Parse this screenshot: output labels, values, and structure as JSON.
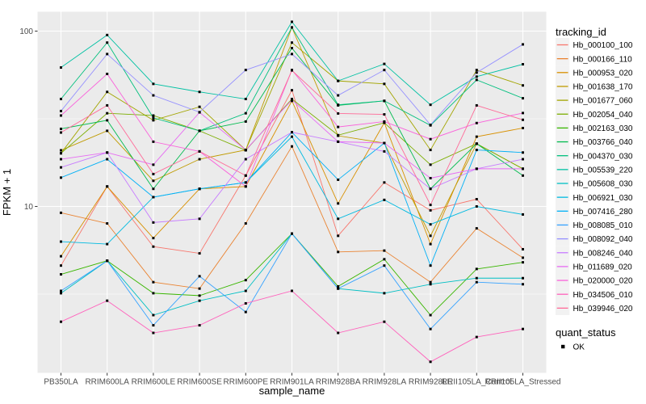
{
  "chart_data": {
    "type": "line",
    "title": "",
    "xlabel": "sample_name",
    "ylabel": "FPKM + 1",
    "y_scale": "log10",
    "y_ticks": [
      10,
      100
    ],
    "y_minor_gridlines": [
      3.162,
      31.62
    ],
    "ylim": [
      1.07,
      129
    ],
    "grid": true,
    "panel_bg": "#EBEBEB",
    "grid_color": "#FFFFFF",
    "marker": "black-square",
    "marker_color": "#000000",
    "tick_label_color": "#4D4D4D",
    "legend_position": "right",
    "categories": [
      "PB350LA",
      "RRIM600LA",
      "RRIM600LE",
      "RRIM600SE",
      "RRIM600PE",
      "RRIM901LA",
      "RRIM928BA",
      "RRIM928LA",
      "RRIM928LE",
      "RRII105LA_Control",
      "RRII105LA_Stressed"
    ],
    "series": [
      {
        "name": "Hb_000100_100",
        "color": "#F8766D",
        "values": [
          4.6,
          13,
          5.9,
          5.4,
          15,
          46,
          6.8,
          13.7,
          9.5,
          11,
          5.7
        ]
      },
      {
        "name": "Hb_000166_110",
        "color": "#EA8331",
        "values": [
          9.2,
          8,
          3.7,
          3.4,
          8,
          22,
          5.5,
          5.6,
          3.7,
          7.5,
          5.1
        ]
      },
      {
        "name": "Hb_000953_020",
        "color": "#D89000",
        "values": [
          5.2,
          13,
          6.6,
          12.6,
          13,
          40,
          10.4,
          30,
          6.1,
          25,
          28
        ]
      },
      {
        "name": "Hb_001638_170",
        "color": "#C09B00",
        "values": [
          20.9,
          27,
          14,
          18.6,
          21,
          105,
          25.3,
          23,
          6.8,
          22.8,
          16.4
        ]
      },
      {
        "name": "Hb_001677_060",
        "color": "#A3A500",
        "values": [
          20.1,
          45,
          31,
          37,
          21,
          86,
          52,
          50,
          21,
          60,
          49
        ]
      },
      {
        "name": "Hb_002054_040",
        "color": "#7CAE00",
        "values": [
          20.1,
          34,
          33,
          27,
          20.9,
          41,
          25.5,
          30,
          17.3,
          22.8,
          16.4
        ]
      },
      {
        "name": "Hb_002163_030",
        "color": "#39B600",
        "values": [
          4.1,
          4.9,
          3.2,
          3.1,
          3.8,
          7,
          3.5,
          5,
          2.4,
          4.4,
          4.8
        ]
      },
      {
        "name": "Hb_003766_040",
        "color": "#00BB4E",
        "values": [
          27.7,
          31,
          12.6,
          27,
          30.5,
          80,
          37.7,
          40,
          12.6,
          22.8,
          15
        ]
      },
      {
        "name": "Hb_004370_030",
        "color": "#00BF7D",
        "values": [
          41,
          86,
          32,
          27,
          34,
          105,
          38,
          40,
          29,
          52.7,
          41.4
        ]
      },
      {
        "name": "Hb_005539_220",
        "color": "#00C1A3",
        "values": [
          62,
          95,
          50,
          45,
          41,
          113,
          52,
          65,
          38,
          55,
          64.7
        ]
      },
      {
        "name": "Hb_005608_030",
        "color": "#00BFC4",
        "values": [
          3.2,
          4.9,
          2.4,
          2.9,
          3.3,
          7,
          3.4,
          3.2,
          3.6,
          3.9,
          3.9
        ]
      },
      {
        "name": "Hb_006921_030",
        "color": "#00BAE0",
        "values": [
          6.3,
          6.1,
          11.3,
          12.6,
          13.7,
          25,
          8.5,
          10.9,
          7.9,
          10,
          9
        ]
      },
      {
        "name": "Hb_007416_280",
        "color": "#00B0F6",
        "values": [
          14.6,
          18.6,
          11.3,
          12.6,
          13.7,
          26.5,
          14.2,
          23,
          4.6,
          21,
          20.3
        ]
      },
      {
        "name": "Hb_008085_010",
        "color": "#35A2FF",
        "values": [
          3.3,
          4.9,
          2.1,
          4,
          2.5,
          7,
          3.4,
          4.6,
          2,
          3.7,
          3.6
        ]
      },
      {
        "name": "Hb_008092_040",
        "color": "#9590FF",
        "values": [
          35,
          74,
          43,
          34.5,
          60,
          74,
          43,
          60,
          29.2,
          58,
          84
        ]
      },
      {
        "name": "Hb_008246_040",
        "color": "#C77CFF",
        "values": [
          16.7,
          20.3,
          8.1,
          8.5,
          18.6,
          26.5,
          23.4,
          20.6,
          12.6,
          16.4,
          18.6
        ]
      },
      {
        "name": "Hb_011689_020",
        "color": "#E76BF3",
        "values": [
          18.6,
          20.3,
          17.3,
          34.4,
          21,
          40.5,
          23.4,
          23,
          14.5,
          16.4,
          16.4
        ]
      },
      {
        "name": "Hb_020000_020",
        "color": "#FA62DB",
        "values": [
          33,
          57,
          23.4,
          20.6,
          13,
          60,
          28.4,
          30.5,
          24.2,
          29.9,
          34.1
        ]
      },
      {
        "name": "Hb_034506_010",
        "color": "#FF62BC",
        "values": [
          2.2,
          2.9,
          1.9,
          2.1,
          2.8,
          3.3,
          1.9,
          2.2,
          1.3,
          1.8,
          2
        ]
      },
      {
        "name": "Hb_039946_020",
        "color": "#FF6A98",
        "values": [
          26.4,
          37.7,
          15.3,
          20.6,
          15,
          59.7,
          33.9,
          33.5,
          10.2,
          37.7,
          31.2
        ]
      }
    ]
  },
  "legend": {
    "tracking_title": "tracking_id",
    "quant_title": "quant_status",
    "quant_items": [
      {
        "label": "OK",
        "marker": "black-square"
      }
    ]
  }
}
